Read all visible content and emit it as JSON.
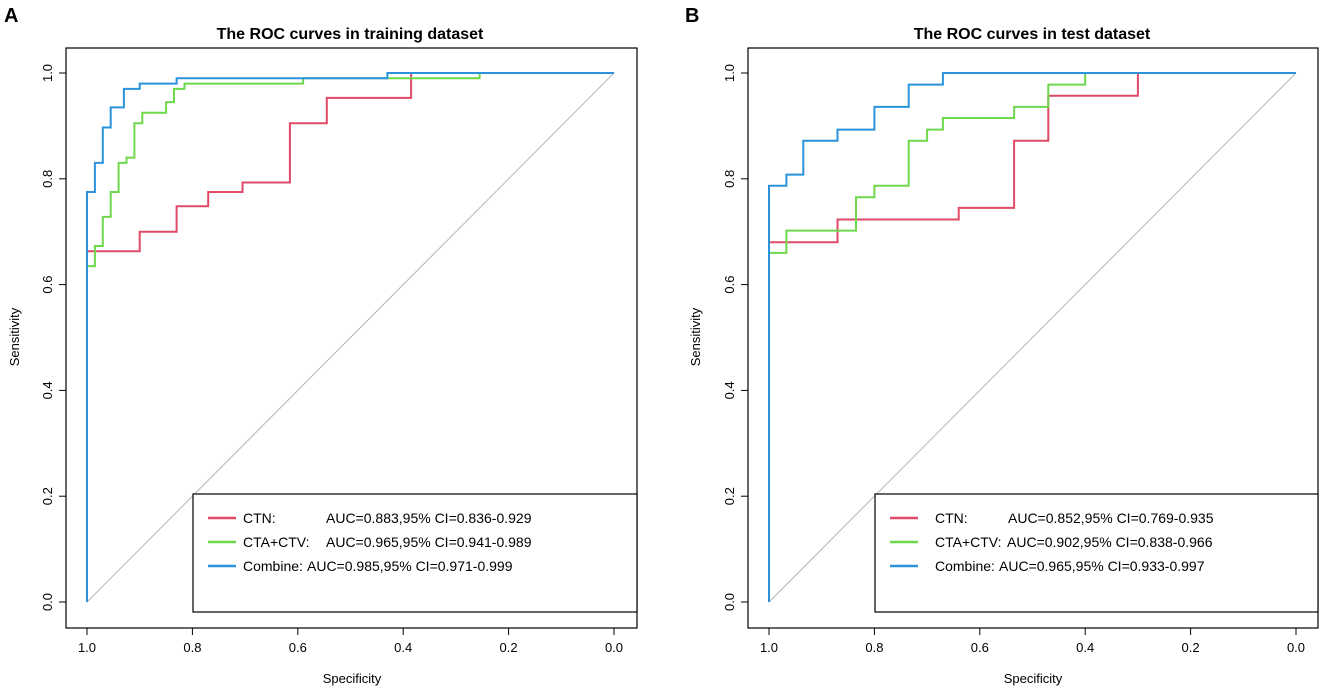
{
  "chart_data": [
    {
      "type": "line",
      "panel": "A",
      "title": "The ROC curves in training dataset",
      "xlabel": "Specificity",
      "ylabel": "Sensitivity",
      "xlim": [
        1.0,
        0.0
      ],
      "ylim": [
        0.0,
        1.0
      ],
      "xticks": [
        "1.0",
        "0.8",
        "0.6",
        "0.4",
        "0.2",
        "0.0"
      ],
      "yticks": [
        "0.0",
        "0.2",
        "0.4",
        "0.6",
        "0.8",
        "1.0"
      ],
      "diagonal": true,
      "legend": {
        "position": "bottom-right"
      },
      "series": [
        {
          "name": "CTN",
          "legend_name": "CTN:",
          "legend_stat": "AUC=0.883,95% CI=0.836-0.929",
          "color": "#df4a66",
          "points": [
            [
              1.0,
              0.0
            ],
            [
              1.0,
              0.663
            ],
            [
              0.9,
              0.663
            ],
            [
              0.9,
              0.7
            ],
            [
              0.83,
              0.7
            ],
            [
              0.83,
              0.748
            ],
            [
              0.77,
              0.748
            ],
            [
              0.77,
              0.775
            ],
            [
              0.705,
              0.775
            ],
            [
              0.705,
              0.793
            ],
            [
              0.615,
              0.793
            ],
            [
              0.615,
              0.905
            ],
            [
              0.545,
              0.905
            ],
            [
              0.545,
              0.953
            ],
            [
              0.385,
              0.953
            ],
            [
              0.385,
              1.0
            ],
            [
              0.0,
              1.0
            ]
          ]
        },
        {
          "name": "CTA+CTV",
          "legend_name": "CTA+CTV:",
          "legend_stat": "AUC=0.965,95% CI=0.941-0.989",
          "color": "#6ed84c",
          "points": [
            [
              1.0,
              0.0
            ],
            [
              1.0,
              0.635
            ],
            [
              0.985,
              0.635
            ],
            [
              0.985,
              0.673
            ],
            [
              0.97,
              0.673
            ],
            [
              0.97,
              0.728
            ],
            [
              0.955,
              0.728
            ],
            [
              0.955,
              0.775
            ],
            [
              0.94,
              0.775
            ],
            [
              0.94,
              0.83
            ],
            [
              0.925,
              0.83
            ],
            [
              0.925,
              0.84
            ],
            [
              0.91,
              0.84
            ],
            [
              0.91,
              0.905
            ],
            [
              0.895,
              0.905
            ],
            [
              0.895,
              0.925
            ],
            [
              0.85,
              0.925
            ],
            [
              0.85,
              0.945
            ],
            [
              0.835,
              0.945
            ],
            [
              0.835,
              0.97
            ],
            [
              0.815,
              0.97
            ],
            [
              0.815,
              0.98
            ],
            [
              0.59,
              0.98
            ],
            [
              0.59,
              0.99
            ],
            [
              0.255,
              0.99
            ],
            [
              0.255,
              1.0
            ],
            [
              0.0,
              1.0
            ]
          ]
        },
        {
          "name": "Combine",
          "legend_name": "Combine:",
          "legend_stat": "AUC=0.985,95% CI=0.971-0.999",
          "color": "#2a93dc",
          "points": [
            [
              1.0,
              0.0
            ],
            [
              1.0,
              0.775
            ],
            [
              0.985,
              0.775
            ],
            [
              0.985,
              0.83
            ],
            [
              0.97,
              0.83
            ],
            [
              0.97,
              0.897
            ],
            [
              0.955,
              0.897
            ],
            [
              0.955,
              0.935
            ],
            [
              0.93,
              0.935
            ],
            [
              0.93,
              0.97
            ],
            [
              0.9,
              0.97
            ],
            [
              0.9,
              0.98
            ],
            [
              0.83,
              0.98
            ],
            [
              0.83,
              0.99
            ],
            [
              0.43,
              0.99
            ],
            [
              0.43,
              1.0
            ],
            [
              0.0,
              1.0
            ]
          ]
        }
      ]
    },
    {
      "type": "line",
      "panel": "B",
      "title": "The ROC curves in test dataset",
      "xlabel": "Specificity",
      "ylabel": "Sensitivity",
      "xlim": [
        1.0,
        0.0
      ],
      "ylim": [
        0.0,
        1.0
      ],
      "xticks": [
        "1.0",
        "0.8",
        "0.6",
        "0.4",
        "0.2",
        "0.0"
      ],
      "yticks": [
        "0.0",
        "0.2",
        "0.4",
        "0.6",
        "0.8",
        "1.0"
      ],
      "diagonal": true,
      "legend": {
        "position": "bottom-right"
      },
      "series": [
        {
          "name": "CTN",
          "legend_name": "CTN:",
          "legend_stat": "AUC=0.852,95% CI=0.769-0.935",
          "color": "#df4a66",
          "points": [
            [
              1.0,
              0.0
            ],
            [
              1.0,
              0.68
            ],
            [
              0.87,
              0.68
            ],
            [
              0.87,
              0.723
            ],
            [
              0.64,
              0.723
            ],
            [
              0.64,
              0.745
            ],
            [
              0.535,
              0.745
            ],
            [
              0.535,
              0.872
            ],
            [
              0.47,
              0.872
            ],
            [
              0.47,
              0.957
            ],
            [
              0.3,
              0.957
            ],
            [
              0.3,
              1.0
            ],
            [
              0.0,
              1.0
            ]
          ]
        },
        {
          "name": "CTA+CTV",
          "legend_name": "CTA+CTV:",
          "legend_stat": "AUC=0.902,95% CI=0.838-0.966",
          "color": "#6ed84c",
          "points": [
            [
              1.0,
              0.0
            ],
            [
              1.0,
              0.66
            ],
            [
              0.967,
              0.66
            ],
            [
              0.967,
              0.702
            ],
            [
              0.835,
              0.702
            ],
            [
              0.835,
              0.765
            ],
            [
              0.8,
              0.765
            ],
            [
              0.8,
              0.787
            ],
            [
              0.735,
              0.787
            ],
            [
              0.735,
              0.872
            ],
            [
              0.7,
              0.872
            ],
            [
              0.7,
              0.893
            ],
            [
              0.67,
              0.893
            ],
            [
              0.67,
              0.915
            ],
            [
              0.535,
              0.915
            ],
            [
              0.535,
              0.936
            ],
            [
              0.47,
              0.936
            ],
            [
              0.47,
              0.978
            ],
            [
              0.4,
              0.978
            ],
            [
              0.4,
              1.0
            ],
            [
              0.0,
              1.0
            ]
          ]
        },
        {
          "name": "Combine",
          "legend_name": "Combine:",
          "legend_stat": "AUC=0.965,95% CI=0.933-0.997",
          "color": "#2a93dc",
          "points": [
            [
              1.0,
              0.0
            ],
            [
              1.0,
              0.787
            ],
            [
              0.967,
              0.787
            ],
            [
              0.967,
              0.808
            ],
            [
              0.935,
              0.808
            ],
            [
              0.935,
              0.872
            ],
            [
              0.87,
              0.872
            ],
            [
              0.87,
              0.893
            ],
            [
              0.8,
              0.893
            ],
            [
              0.8,
              0.936
            ],
            [
              0.735,
              0.936
            ],
            [
              0.735,
              0.978
            ],
            [
              0.67,
              0.978
            ],
            [
              0.67,
              1.0
            ],
            [
              0.0,
              1.0
            ]
          ]
        }
      ]
    }
  ]
}
